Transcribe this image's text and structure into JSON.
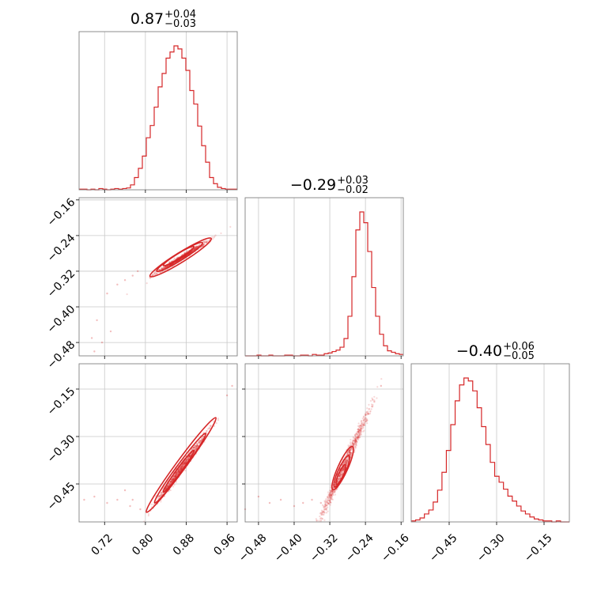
{
  "chart_data": {
    "type": "corner",
    "color": "#d62728",
    "grid": true,
    "parameters": [
      {
        "range": [
          0.67,
          0.98
        ],
        "ticks": [
          0.72,
          0.8,
          0.88,
          0.96
        ],
        "tick_labels": [
          "0.72",
          "0.80",
          "0.88",
          "0.96"
        ],
        "title": {
          "median": "0.87",
          "plus": "+0.04",
          "minus": "−0.03"
        }
      },
      {
        "range": [
          -0.51,
          -0.155
        ],
        "ticks": [
          -0.48,
          -0.4,
          -0.32,
          -0.24,
          -0.16
        ],
        "tick_labels": [
          "−0.48",
          "−0.40",
          "−0.32",
          "−0.24",
          "−0.16"
        ],
        "title": {
          "median": "−0.29",
          "plus": "+0.03",
          "minus": "−0.02"
        }
      },
      {
        "range": [
          -0.57,
          -0.07
        ],
        "ticks": [
          -0.45,
          -0.3,
          -0.15
        ],
        "tick_labels": [
          "−0.45",
          "−0.30",
          "−0.15"
        ],
        "title": {
          "median": "−0.40",
          "plus": "+0.06",
          "minus": "−0.05"
        }
      }
    ],
    "marginal_histograms": [
      {
        "param": 0,
        "bin_edges_range": [
          0.67,
          0.98
        ],
        "counts": [
          1,
          1,
          0,
          1,
          0,
          2,
          1,
          0,
          1,
          2,
          1,
          2,
          3,
          8,
          20,
          35,
          55,
          85,
          105,
          135,
          168,
          190,
          215,
          225,
          235,
          230,
          215,
          195,
          162,
          140,
          104,
          72,
          45,
          20,
          10,
          4,
          2,
          1,
          1,
          1
        ]
      },
      {
        "param": 1,
        "bin_edges_range": [
          -0.51,
          -0.155
        ],
        "counts": [
          0,
          0,
          0,
          1,
          0,
          0,
          1,
          0,
          0,
          0,
          1,
          1,
          0,
          0,
          1,
          1,
          0,
          2,
          1,
          1,
          3,
          4,
          6,
          8,
          12,
          24,
          55,
          110,
          175,
          200,
          185,
          145,
          95,
          55,
          30,
          14,
          7,
          5,
          3,
          2
        ]
      },
      {
        "param": 2,
        "bin_edges_range": [
          -0.57,
          -0.07
        ],
        "counts": [
          1,
          2,
          4,
          8,
          12,
          20,
          32,
          50,
          72,
          98,
          122,
          138,
          145,
          142,
          132,
          115,
          96,
          78,
          60,
          46,
          40,
          33,
          26,
          21,
          16,
          11,
          8,
          5,
          3,
          2,
          1,
          1,
          0,
          1,
          0,
          0
        ]
      }
    ],
    "pair_panels": [
      {
        "x_param": 0,
        "y_param": 1,
        "ridge": {
          "intercept": -0.29,
          "slope": 0.71,
          "x_center": 0.87
        },
        "contour_levels": [
          {
            "cx": 0.865,
            "cy": -0.286,
            "sx": 0.03,
            "sy": 0.01
          },
          {
            "cx": 0.867,
            "cy": -0.288,
            "sx": 0.045,
            "sy": 0.014
          },
          {
            "cx": 0.869,
            "cy": -0.289,
            "sx": 0.06,
            "sy": 0.019
          }
        ],
        "outliers": [
          [
            0.695,
            -0.47
          ],
          [
            0.7,
            -0.5
          ],
          [
            0.705,
            -0.43
          ],
          [
            0.715,
            -0.48
          ],
          [
            0.725,
            -0.37
          ],
          [
            0.745,
            -0.35
          ],
          [
            0.76,
            -0.34
          ],
          [
            0.775,
            -0.33
          ],
          [
            0.785,
            -0.32
          ],
          [
            0.732,
            -0.455
          ]
        ]
      },
      {
        "x_param": 0,
        "y_param": 2,
        "ridge": {
          "intercept": -0.4,
          "slope": 2.2,
          "x_center": 0.87
        },
        "contour_levels": [
          {
            "cx": 0.865,
            "cy": -0.41,
            "sx": 0.03,
            "sy": 0.01
          },
          {
            "cx": 0.868,
            "cy": -0.4,
            "sx": 0.05,
            "sy": 0.016
          },
          {
            "cx": 0.87,
            "cy": -0.39,
            "sx": 0.068,
            "sy": 0.022
          }
        ],
        "outliers": [
          [
            0.68,
            -0.5
          ],
          [
            0.7,
            -0.49
          ],
          [
            0.725,
            -0.51
          ],
          [
            0.745,
            -0.5
          ],
          [
            0.76,
            -0.47
          ],
          [
            0.77,
            -0.52
          ],
          [
            0.775,
            -0.5
          ],
          [
            0.79,
            -0.53
          ],
          [
            0.96,
            -0.17
          ],
          [
            0.97,
            -0.14
          ]
        ]
      },
      {
        "x_param": 1,
        "y_param": 2,
        "ridge": {
          "intercept": -0.4,
          "slope": 3.1,
          "x_center": -0.29
        },
        "contour_levels": [
          {
            "cx": -0.295,
            "cy": -0.42,
            "sx": 0.01,
            "sy": 0.03
          },
          {
            "cx": -0.293,
            "cy": -0.41,
            "sx": 0.016,
            "sy": 0.05
          },
          {
            "cx": -0.291,
            "cy": -0.4,
            "sx": 0.022,
            "sy": 0.07
          }
        ],
        "outliers": [
          [
            -0.51,
            -0.53
          ],
          [
            -0.48,
            -0.49
          ],
          [
            -0.455,
            -0.51
          ],
          [
            -0.43,
            -0.5
          ],
          [
            -0.4,
            -0.52
          ],
          [
            -0.38,
            -0.51
          ],
          [
            -0.36,
            -0.5
          ],
          [
            -0.34,
            -0.51
          ],
          [
            -0.22,
            -0.19
          ],
          [
            -0.205,
            -0.14
          ]
        ]
      }
    ]
  }
}
